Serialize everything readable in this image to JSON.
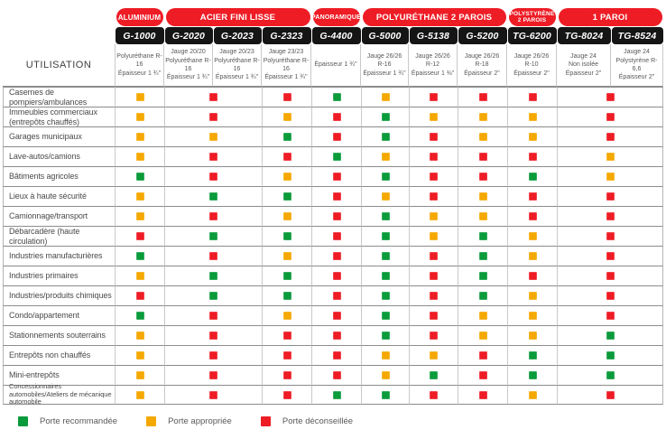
{
  "colors": {
    "G": "#0A9B3B",
    "Y": "#F5A800",
    "R": "#EE1C25",
    "header_band_red": "#EE1C25",
    "header_band_black": "#151515"
  },
  "chart_data": {
    "type": "table",
    "corner_label": "UTILISATION",
    "category_headers": [
      {
        "label": "ALUMINIUM",
        "span": 1
      },
      {
        "label": "ACIER FINI LISSE",
        "span": 3
      },
      {
        "label": "PANORAMIQUE",
        "span": 1
      },
      {
        "label": "POLYURÉTHANE 2 PAROIS",
        "span": 3
      },
      {
        "label": "POLYSTYRÈNE 2 PAROIS",
        "span": 1,
        "lines": [
          "POLYSTYRÈNE",
          "2 PAROIS"
        ]
      },
      {
        "label": "1 PAROI",
        "span": 2
      }
    ],
    "models": [
      {
        "name": "G-1000",
        "spec": [
          "Polyuréthane R-16",
          "Épaisseur 1 ¾\""
        ]
      },
      {
        "name": "G-2020",
        "spec": [
          "Jauge 20/20",
          "Polyuréthane R-16",
          "Épaisseur 1 ¾\""
        ]
      },
      {
        "name": "G-2023",
        "spec": [
          "Jauge 20/23",
          "Polyuréthane R-16",
          "Épaisseur 1 ¾\""
        ]
      },
      {
        "name": "G-2323",
        "spec": [
          "Jauge 23/23",
          "Polyuréthane R-16",
          "Épaisseur 1 ¾\""
        ]
      },
      {
        "name": "G-4400",
        "spec": [
          "Épaisseur 1 ¾\""
        ]
      },
      {
        "name": "G-5000",
        "spec": [
          "Jauge 26/26",
          "R-16",
          "Épaisseur 1 ¾\""
        ]
      },
      {
        "name": "G-5138",
        "spec": [
          "Jauge 26/26",
          "R-12",
          "Épaisseur 1 ⅜\""
        ]
      },
      {
        "name": "G-5200",
        "spec": [
          "Jauge 26/26",
          "R-18",
          "Épaisseur 2\""
        ]
      },
      {
        "name": "TG-6200",
        "spec": [
          "Jauge 26/26",
          "R-10",
          "Épaisseur 2\""
        ]
      },
      {
        "name": "TG-8024",
        "spec": [
          "Jauge 24",
          "Non isolée",
          "Épaisseur 2\""
        ]
      },
      {
        "name": "TG-8524",
        "spec": [
          "Jauge 24",
          "Polystyrène R-6,6",
          "Épaisseur 2\""
        ]
      }
    ],
    "cell_column_spans": [
      1,
      2,
      1,
      1,
      1,
      1,
      1,
      1,
      2
    ],
    "cell_model_coverage": [
      "G-1000",
      "G-2020 + G-2023",
      "G-2323",
      "G-4400",
      "G-5000",
      "G-5138",
      "G-5200",
      "TG-6200",
      "TG-8024 + TG-8524"
    ],
    "rating_scale": {
      "G": "Porte recommandée",
      "Y": "Porte appropriée",
      "R": "Porte déconseillée"
    },
    "rows": [
      {
        "label": "Casernes de pompiers/ambulances",
        "cells": [
          "Y",
          "R",
          "R",
          "G",
          "Y",
          "R",
          "R",
          "R",
          "R"
        ]
      },
      {
        "label": "Immeubles commerciaux (entrepôts chauffés)",
        "cells": [
          "Y",
          "R",
          "Y",
          "R",
          "G",
          "Y",
          "Y",
          "Y",
          "R"
        ]
      },
      {
        "label": "Garages municipaux",
        "cells": [
          "Y",
          "Y",
          "G",
          "R",
          "G",
          "R",
          "Y",
          "Y",
          "R"
        ]
      },
      {
        "label": "Lave-autos/camions",
        "cells": [
          "Y",
          "R",
          "R",
          "G",
          "Y",
          "R",
          "R",
          "R",
          "Y"
        ]
      },
      {
        "label": "Bâtiments agricoles",
        "cells": [
          "G",
          "R",
          "Y",
          "R",
          "G",
          "R",
          "R",
          "G",
          "Y"
        ]
      },
      {
        "label": "Lieux à haute sécurité",
        "cells": [
          "Y",
          "G",
          "G",
          "R",
          "Y",
          "R",
          "Y",
          "R",
          "R"
        ]
      },
      {
        "label": "Camionnage/transport",
        "cells": [
          "Y",
          "R",
          "Y",
          "R",
          "G",
          "Y",
          "Y",
          "R",
          "R"
        ]
      },
      {
        "label": "Débarcadère (haute circulation)",
        "cells": [
          "R",
          "G",
          "G",
          "R",
          "G",
          "Y",
          "G",
          "Y",
          "R"
        ]
      },
      {
        "label": "Industries manufacturières",
        "cells": [
          "G",
          "R",
          "Y",
          "R",
          "G",
          "R",
          "G",
          "Y",
          "R"
        ]
      },
      {
        "label": "Industries primaires",
        "cells": [
          "Y",
          "G",
          "G",
          "R",
          "G",
          "R",
          "G",
          "R",
          "R"
        ]
      },
      {
        "label": "Industries/produits chimiques",
        "cells": [
          "R",
          "G",
          "G",
          "R",
          "G",
          "R",
          "G",
          "Y",
          "R"
        ]
      },
      {
        "label": "Condo/appartement",
        "cells": [
          "G",
          "R",
          "Y",
          "R",
          "G",
          "R",
          "Y",
          "Y",
          "R"
        ]
      },
      {
        "label": "Stationnements souterrains",
        "cells": [
          "Y",
          "R",
          "R",
          "R",
          "G",
          "R",
          "Y",
          "Y",
          "G"
        ]
      },
      {
        "label": "Entrepôts non chauffés",
        "cells": [
          "Y",
          "R",
          "R",
          "R",
          "Y",
          "Y",
          "R",
          "G",
          "G"
        ]
      },
      {
        "label": "Mini-entrepôts",
        "cells": [
          "Y",
          "R",
          "R",
          "R",
          "Y",
          "G",
          "R",
          "G",
          "G"
        ]
      },
      {
        "label": "Concessionnaires automobiles/Ateliers de mécanique automobile",
        "cells": [
          "Y",
          "R",
          "R",
          "G",
          "G",
          "R",
          "R",
          "Y",
          "R"
        ]
      }
    ]
  },
  "legend": {
    "items": [
      {
        "key": "G",
        "label": "Porte recommandée"
      },
      {
        "key": "Y",
        "label": "Porte appropriée"
      },
      {
        "key": "R",
        "label": "Porte déconseillée"
      }
    ]
  }
}
